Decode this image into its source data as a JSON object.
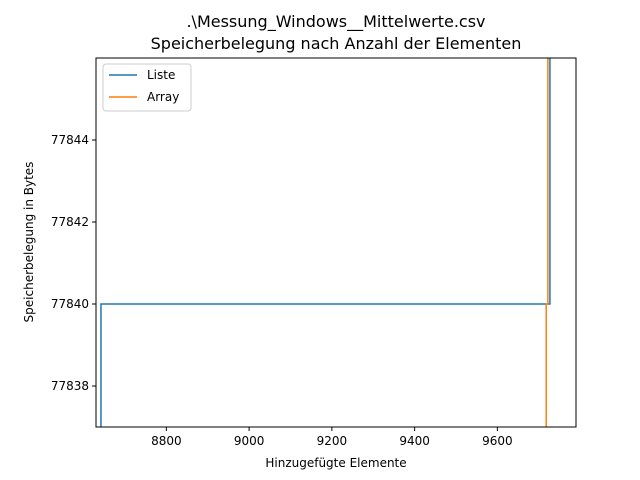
{
  "chart_data": {
    "type": "line",
    "title_line1": ".\\Messung_Windows__Mittelwerte.csv",
    "title_line2": "Speicherbelegung nach Anzahl der Elementen",
    "xlabel": "Hinzugefügte Elemente",
    "ylabel": "Speicherbelegung in Bytes",
    "xlim": [
      8630,
      9790
    ],
    "ylim": [
      77837,
      77846
    ],
    "xticks": [
      8800,
      9000,
      9200,
      9400,
      9600
    ],
    "yticks": [
      77838,
      77840,
      77842,
      77844
    ],
    "legend_position": "top-left",
    "grid": false,
    "series": [
      {
        "name": "Liste",
        "color": "#1f77b4",
        "x": [
          8642,
          8642,
          9725,
          9725,
          9727,
          9727
        ],
        "y": [
          77837,
          77840,
          77840,
          77840,
          77840,
          77846
        ]
      },
      {
        "name": "Array",
        "color": "#ff7f0e",
        "x": [
          9718,
          9718,
          9722,
          9722
        ],
        "y": [
          77837,
          77840,
          77840,
          77846
        ]
      }
    ]
  }
}
